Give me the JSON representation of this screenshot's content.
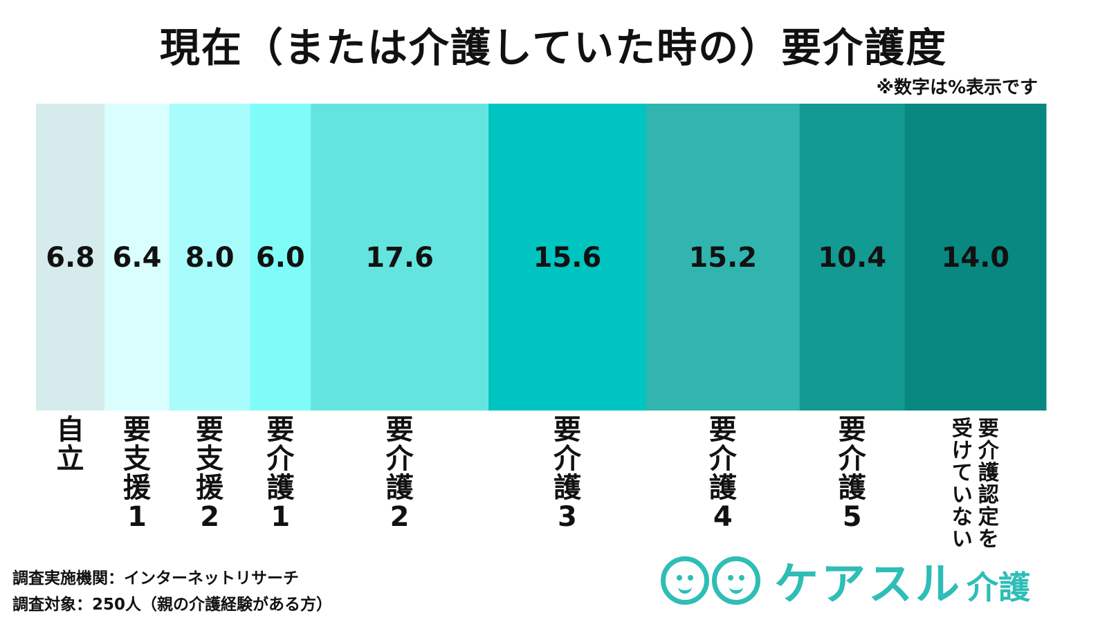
{
  "title": "現在（または介護していた時の）要介護度",
  "note": "※数字は%表示です",
  "chart_data": {
    "type": "bar",
    "stacked": "100% horizontal",
    "categories": [
      "自立",
      "要支援1",
      "要支援2",
      "要介護1",
      "要介護2",
      "要介護3",
      "要介護4",
      "要介護5",
      "要介護認定を受けていない"
    ],
    "values": [
      6.8,
      6.4,
      8.0,
      6.0,
      17.6,
      15.6,
      15.2,
      10.4,
      14.0
    ],
    "value_labels": [
      "6.8",
      "6.4",
      "8.0",
      "6.0",
      "17.6",
      "15.6",
      "15.2",
      "10.4",
      "14.0"
    ],
    "label_columns": [
      [
        "自立"
      ],
      [
        "要支援",
        "1"
      ],
      [
        "要支援",
        "2"
      ],
      [
        "要介護",
        "1"
      ],
      [
        "要介護",
        "2"
      ],
      [
        "要介護",
        "3"
      ],
      [
        "要介護",
        "4"
      ],
      [
        "要介護",
        "5"
      ],
      [
        "受けていない",
        "要介護認定を"
      ]
    ],
    "colors": [
      "#d6ecec",
      "#dafefe",
      "#a8fcfc",
      "#80fcf8",
      "#64e4de",
      "#00c4c0",
      "#32b5af",
      "#139a93",
      "#098882"
    ],
    "unit": "%"
  },
  "footer": {
    "line1": "調査実施機関：インターネットリサーチ",
    "line2": "調査対象：250人（親の介護経験がある方）"
  },
  "logo": {
    "name": "ケアスル",
    "sub": "介護",
    "color": "#2ebdb7"
  }
}
